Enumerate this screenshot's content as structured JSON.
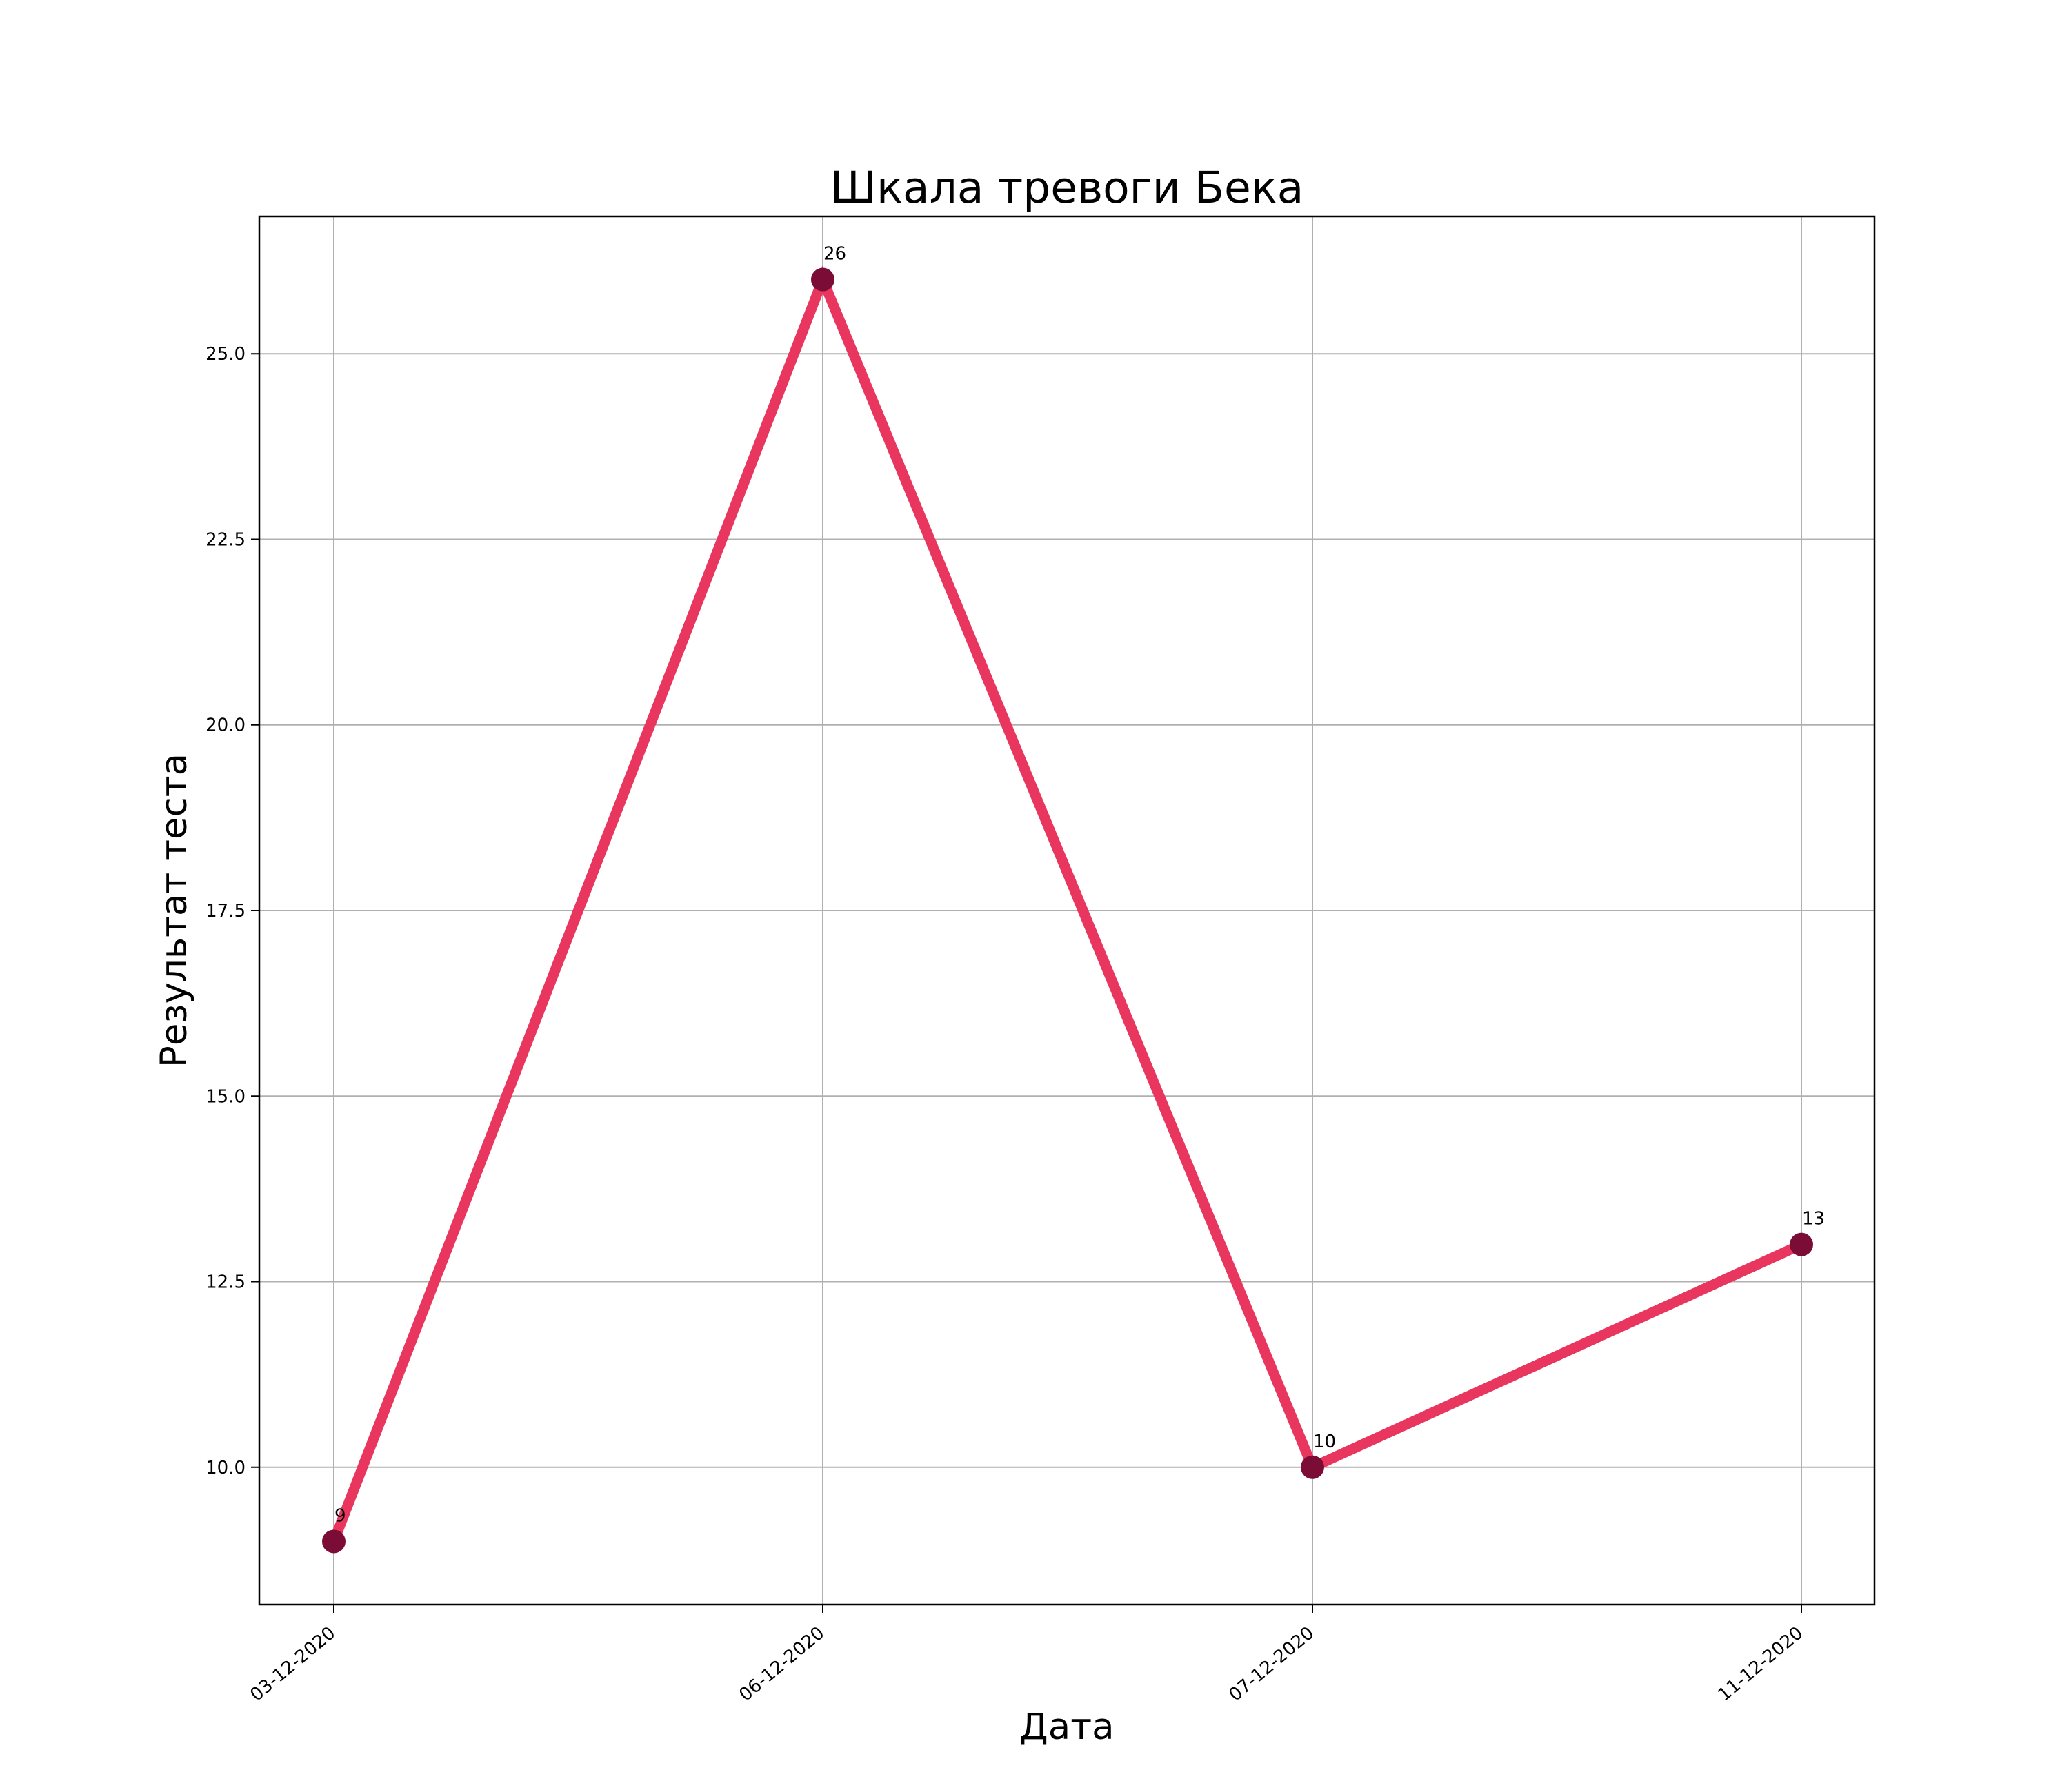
{
  "chart_data": {
    "type": "line",
    "title": "Шкала тревоги Бека",
    "xlabel": "Дата",
    "ylabel": "Результат теста",
    "categories": [
      "03-12-2020",
      "06-12-2020",
      "07-12-2020",
      "11-12-2020"
    ],
    "values": [
      9,
      26,
      10,
      13
    ],
    "data_labels": [
      "9",
      "26",
      "10",
      "13"
    ],
    "yticks": [
      10.0,
      12.5,
      15.0,
      17.5,
      20.0,
      22.5,
      25.0
    ],
    "ytick_labels": [
      "10.0",
      "12.5",
      "15.0",
      "17.5",
      "20.0",
      "22.5",
      "25.0"
    ],
    "ylim": [
      8.15,
      26.85
    ],
    "grid": true,
    "line_color": "#e8365f",
    "marker_color": "#7a0c35"
  }
}
